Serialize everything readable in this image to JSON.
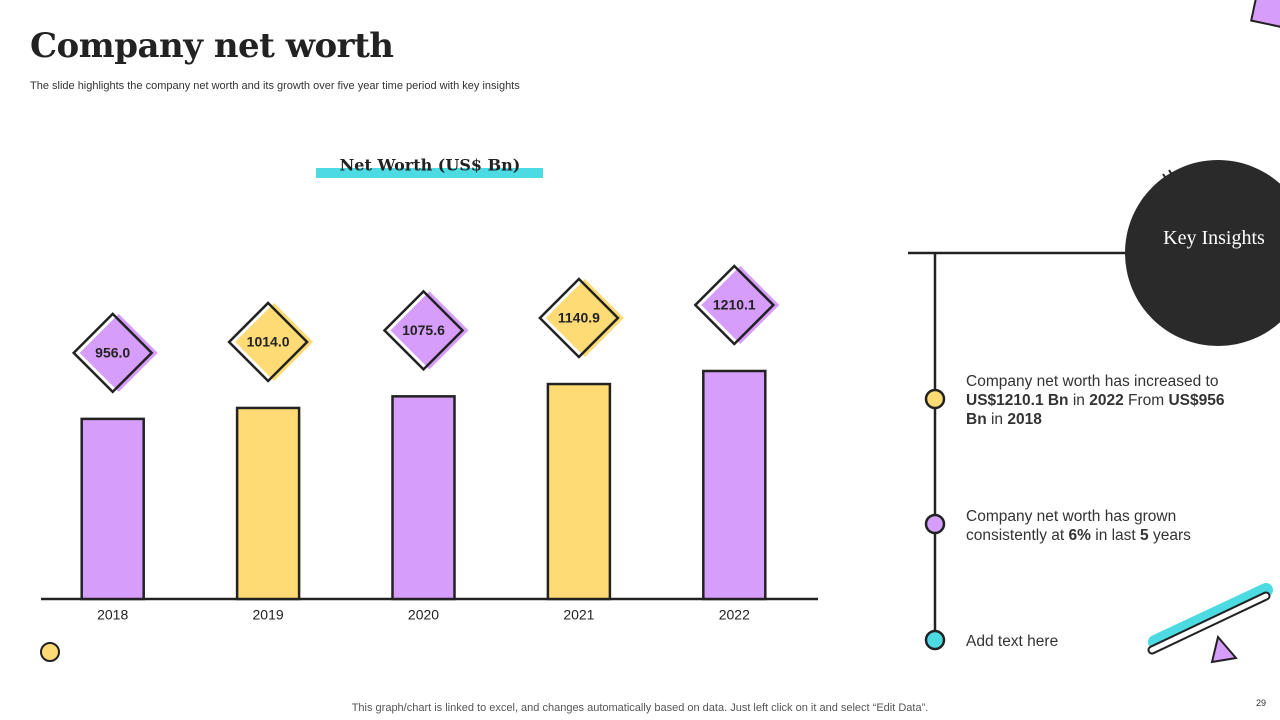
{
  "title": "Company net worth",
  "subtitle": "The slide highlights the company net worth and its growth over five year time period with key insights",
  "chart_data": {
    "type": "bar",
    "title": "Net Worth (US$ Bn)",
    "categories": [
      "2018",
      "2019",
      "2020",
      "2021",
      "2022"
    ],
    "values": [
      956.0,
      1014.0,
      1075.6,
      1140.9,
      1210.1
    ],
    "value_labels": [
      "956.0",
      "1014.0",
      "1075.6",
      "1140.9",
      "1210.1"
    ],
    "colors": [
      "#d69dfa",
      "#fedb74",
      "#d69dfa",
      "#fedb74",
      "#d69dfa"
    ]
  },
  "insights": {
    "heading": "Key Insights",
    "items": [
      {
        "color": "#fedb74",
        "runs": [
          {
            "text": "Company net worth has increased to "
          },
          {
            "text": "US$1210.1 Bn",
            "bold": true
          },
          {
            "text": " in "
          },
          {
            "text": "2022",
            "bold": true
          },
          {
            "text": " From "
          },
          {
            "text": "US$956 Bn",
            "bold": true
          },
          {
            "text": " in "
          },
          {
            "text": "2018",
            "bold": true
          }
        ]
      },
      {
        "color": "#d69dfa",
        "runs": [
          {
            "text": "Company net worth has grown consistently  at "
          },
          {
            "text": "6%",
            "bold": true
          },
          {
            "text": " in last "
          },
          {
            "text": "5",
            "bold": true
          },
          {
            "text": " years"
          }
        ]
      },
      {
        "color": "#4ddbe3",
        "runs": [
          {
            "text": "Add text here"
          }
        ]
      }
    ]
  },
  "footer": "This graph/chart is linked to excel,  and changes automatically based on data. Just left click on it and select “Edit Data”.",
  "page_number": "29"
}
